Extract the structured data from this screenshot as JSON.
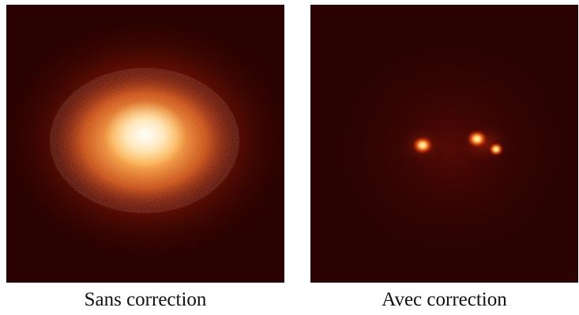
{
  "figure": {
    "left_panel": {
      "caption": "Sans correction"
    },
    "right_panel": {
      "caption": "Avec correction"
    }
  },
  "colors": {
    "background_dark": "#2a0202",
    "glow_mid": "#c8300a",
    "glow_bright": "#ffcf70",
    "glow_core": "#fff4d8"
  }
}
